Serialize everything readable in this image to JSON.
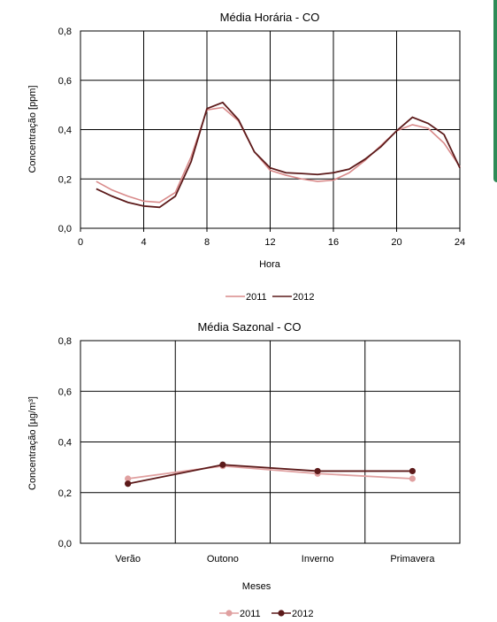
{
  "chart_data": [
    {
      "type": "line",
      "title": "Média Horária - CO",
      "xlabel": "Hora",
      "ylabel": "Concentração [ppm]",
      "xlim": [
        0,
        24
      ],
      "ylim": [
        0,
        0.8
      ],
      "x_ticks": [
        "0",
        "4",
        "8",
        "12",
        "16",
        "20",
        "24"
      ],
      "y_ticks": [
        "0,0",
        "0,2",
        "0,4",
        "0,6",
        "0,8"
      ],
      "grid": true,
      "legend": "bottom",
      "x": [
        1,
        2,
        3,
        4,
        5,
        6,
        7,
        8,
        9,
        10,
        11,
        12,
        13,
        14,
        15,
        16,
        17,
        18,
        19,
        20,
        21,
        22,
        23,
        24
      ],
      "series": [
        {
          "name": "2011",
          "color": "#d98a8a",
          "values": [
            0.19,
            0.155,
            0.13,
            0.11,
            0.105,
            0.145,
            0.29,
            0.48,
            0.49,
            0.435,
            0.31,
            0.235,
            0.215,
            0.2,
            0.19,
            0.195,
            0.225,
            0.275,
            0.335,
            0.395,
            0.42,
            0.405,
            0.345,
            0.25
          ]
        },
        {
          "name": "2012",
          "color": "#5c1a1a",
          "values": [
            0.16,
            0.13,
            0.105,
            0.09,
            0.085,
            0.13,
            0.27,
            0.485,
            0.51,
            0.44,
            0.31,
            0.245,
            0.225,
            0.222,
            0.218,
            0.225,
            0.24,
            0.28,
            0.33,
            0.395,
            0.45,
            0.425,
            0.38,
            0.245
          ]
        }
      ]
    },
    {
      "type": "line",
      "title": "Média Sazonal - CO",
      "xlabel": "Meses",
      "ylabel": "Concentração [µg/m³]",
      "categories": [
        "Verão",
        "Outono",
        "Inverno",
        "Primavera"
      ],
      "ylim": [
        0,
        0.8
      ],
      "y_ticks": [
        "0,0",
        "0,2",
        "0,4",
        "0,6",
        "0,8"
      ],
      "grid": true,
      "legend": "bottom",
      "series": [
        {
          "name": "2011",
          "color": "#e0a0a0",
          "values": [
            0.255,
            0.305,
            0.275,
            0.255
          ]
        },
        {
          "name": "2012",
          "color": "#5c1a1a",
          "values": [
            0.235,
            0.31,
            0.285,
            0.285
          ]
        }
      ]
    }
  ]
}
